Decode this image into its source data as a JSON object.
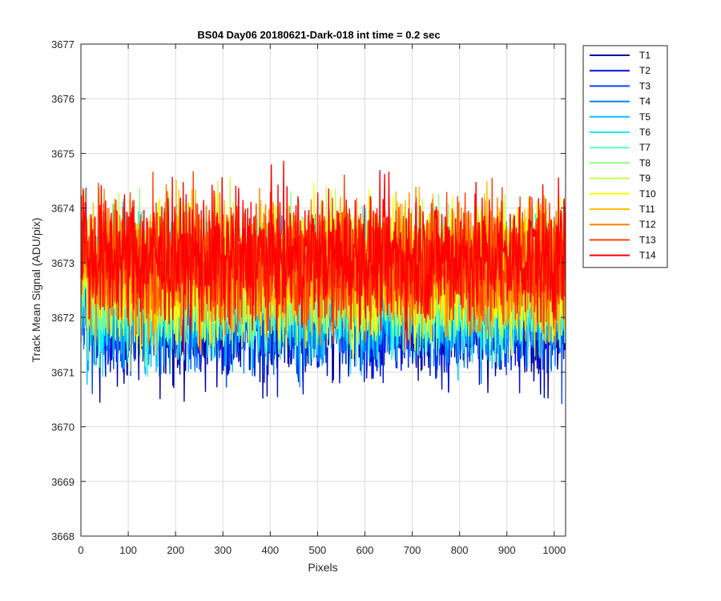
{
  "chart_data": {
    "type": "line",
    "title": "BS04 Day06 20180621-Dark-018 int time = 0.2 sec",
    "xlabel": "Pixels",
    "ylabel": "Track Mean Signal (ADU/pix)",
    "xlim": [
      0,
      1024
    ],
    "ylim": [
      3668,
      3677
    ],
    "xticks": [
      0,
      100,
      200,
      300,
      400,
      500,
      600,
      700,
      800,
      900,
      1000
    ],
    "yticks": [
      3668,
      3669,
      3670,
      3671,
      3672,
      3673,
      3674,
      3675,
      3676,
      3677
    ],
    "grid": true,
    "legend_position": "outside-top-right",
    "n_points_per_series": 1024,
    "series": [
      {
        "name": "T1",
        "color": "#0000a8",
        "mean": 3672.0,
        "spread": 0.95
      },
      {
        "name": "T2",
        "color": "#0010d8",
        "mean": 3672.1,
        "spread": 0.95
      },
      {
        "name": "T3",
        "color": "#0048ff",
        "mean": 3672.2,
        "spread": 0.95
      },
      {
        "name": "T4",
        "color": "#0088ff",
        "mean": 3672.3,
        "spread": 0.95
      },
      {
        "name": "T5",
        "color": "#00c4ff",
        "mean": 3672.4,
        "spread": 0.95
      },
      {
        "name": "T6",
        "color": "#18f0f0",
        "mean": 3672.5,
        "spread": 0.95
      },
      {
        "name": "T7",
        "color": "#5cffb8",
        "mean": 3672.6,
        "spread": 0.95
      },
      {
        "name": "T8",
        "color": "#90ff80",
        "mean": 3672.7,
        "spread": 0.95
      },
      {
        "name": "T9",
        "color": "#c8ff40",
        "mean": 3672.8,
        "spread": 0.95
      },
      {
        "name": "T10",
        "color": "#ffff00",
        "mean": 3672.85,
        "spread": 0.95
      },
      {
        "name": "T11",
        "color": "#ffc000",
        "mean": 3672.9,
        "spread": 0.95
      },
      {
        "name": "T12",
        "color": "#ff8000",
        "mean": 3672.95,
        "spread": 0.95
      },
      {
        "name": "T13",
        "color": "#ff4000",
        "mean": 3673.0,
        "spread": 0.95
      },
      {
        "name": "T14",
        "color": "#ff0000",
        "mean": 3673.1,
        "spread": 0.95
      }
    ]
  }
}
